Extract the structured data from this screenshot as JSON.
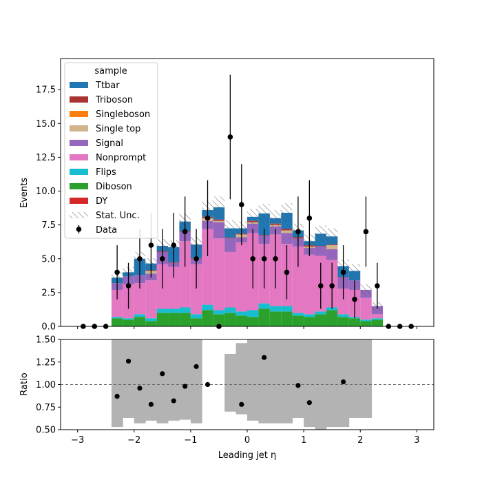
{
  "chart_data": [
    {
      "type": "bar",
      "subtype": "stacked-histogram",
      "ylabel": "Events",
      "ylim": [
        0,
        19.8
      ],
      "y_ticks": [
        "0.0",
        "2.5",
        "5.0",
        "7.5",
        "10.0",
        "12.5",
        "15.0",
        "17.5"
      ],
      "x_ticks": [
        "−3",
        "−2",
        "−1",
        "0",
        "1",
        "2",
        "3"
      ],
      "xlim": [
        -3.3,
        3.3
      ],
      "bin_edges": [
        -2.4,
        -2.2,
        -2.0,
        -1.8,
        -1.6,
        -1.4,
        -1.2,
        -1.0,
        -0.8,
        -0.6,
        -0.4,
        -0.2,
        0.0,
        0.2,
        0.4,
        0.6,
        0.8,
        1.0,
        1.2,
        1.4,
        1.6,
        1.8,
        2.0,
        2.2,
        2.4
      ],
      "legend_title": "sample",
      "legend_position": "top-left",
      "stack_order": [
        "DY",
        "Diboson",
        "Flips",
        "Nonprompt",
        "Signal",
        "Single top",
        "Singleboson",
        "Triboson",
        "Ttbar"
      ],
      "series": [
        {
          "name": "Ttbar",
          "color": "#1f77b4",
          "values": [
            0.4,
            0.3,
            1.2,
            0.5,
            0.4,
            1.1,
            0.7,
            1.0,
            0.5,
            0.9,
            0.7,
            0.4,
            0.3,
            1.6,
            0.4,
            1.2,
            0.5,
            0.3,
            0.9,
            0.6,
            0.8,
            0.7,
            0.0,
            0.0
          ]
        },
        {
          "name": "Triboson",
          "color": "#aa3333",
          "values": [
            0.0,
            0.0,
            0.0,
            0.05,
            0.05,
            0.05,
            0.05,
            0.05,
            0.1,
            0.1,
            0.05,
            0.05,
            0.1,
            0.05,
            0.1,
            0.1,
            0.1,
            0.1,
            0.05,
            0.05,
            0.05,
            0.0,
            0.0,
            0.0
          ]
        },
        {
          "name": "Singleboson",
          "color": "#ff7f0e",
          "values": [
            0.0,
            0.0,
            0.0,
            0.0,
            0.0,
            0.0,
            0.0,
            0.0,
            0.0,
            0.0,
            0.0,
            0.0,
            0.0,
            0.0,
            0.0,
            0.0,
            0.0,
            0.0,
            0.0,
            0.0,
            0.0,
            0.0,
            0.0,
            0.0
          ]
        },
        {
          "name": "Single top",
          "color": "#d2b48c",
          "values": [
            0.0,
            0.0,
            0.0,
            0.2,
            0.0,
            0.0,
            0.0,
            0.0,
            0.2,
            0.1,
            0.0,
            0.2,
            0.1,
            0.0,
            0.1,
            0.2,
            0.0,
            0.1,
            0.0,
            0.3,
            0.0,
            0.0,
            0.0,
            0.0
          ]
        },
        {
          "name": "Signal",
          "color": "#9467bd",
          "values": [
            0.5,
            0.6,
            0.6,
            0.5,
            0.9,
            0.3,
            0.7,
            0.4,
            0.6,
            1.2,
            1.0,
            0.4,
            0.7,
            0.6,
            0.6,
            0.8,
            0.6,
            0.5,
            0.7,
            0.8,
            0.8,
            0.7,
            0.6,
            0.6
          ]
        },
        {
          "name": "Nonprompt",
          "color": "#e377c2",
          "values": [
            2.0,
            2.5,
            2.3,
            2.8,
            3.3,
            3.1,
            4.9,
            3.7,
            5.6,
            5.3,
            4.1,
            5.1,
            5.7,
            4.4,
            5.3,
            4.6,
            4.9,
            4.4,
            4.1,
            3.5,
            1.9,
            2.0,
            1.6,
            0.3
          ]
        },
        {
          "name": "Flips",
          "color": "#17becf",
          "values": [
            0.1,
            0.1,
            0.2,
            0.2,
            0.3,
            0.3,
            0.4,
            0.3,
            0.4,
            0.3,
            0.4,
            0.3,
            0.5,
            0.4,
            0.4,
            0.4,
            0.2,
            0.2,
            0.2,
            0.2,
            0.2,
            0.1,
            0.1,
            0.1
          ]
        },
        {
          "name": "Diboson",
          "color": "#2ca02c",
          "values": [
            0.6,
            0.5,
            0.7,
            0.4,
            1.0,
            1.0,
            1.0,
            0.6,
            1.2,
            0.9,
            1.0,
            0.8,
            0.7,
            1.3,
            1.1,
            1.1,
            0.8,
            0.7,
            0.9,
            1.2,
            0.7,
            0.6,
            0.4,
            0.5
          ]
        },
        {
          "name": "DY",
          "color": "#d62728",
          "values": [
            0.0,
            0.0,
            0.0,
            0.0,
            0.0,
            0.0,
            0.0,
            0.0,
            0.0,
            0.0,
            0.0,
            0.0,
            0.0,
            0.0,
            0.0,
            0.0,
            0.0,
            0.0,
            0.0,
            0.0,
            0.0,
            0.0,
            0.0,
            0.0
          ]
        }
      ],
      "stat_unc_name": "Stat. Unc.",
      "stat_unc": [
        0.4,
        0.4,
        0.5,
        0.4,
        0.5,
        0.5,
        0.6,
        0.6,
        0.7,
        0.8,
        0.6,
        0.5,
        0.6,
        0.7,
        0.6,
        0.7,
        0.5,
        0.5,
        0.6,
        0.6,
        0.5,
        0.5,
        0.4,
        0.3
      ],
      "data_name": "Data",
      "data": {
        "x": [
          -2.9,
          -2.7,
          -2.5,
          -2.3,
          -2.1,
          -1.9,
          -1.7,
          -1.5,
          -1.3,
          -1.1,
          -0.9,
          -0.7,
          -0.5,
          -0.3,
          -0.1,
          0.1,
          0.3,
          0.5,
          0.7,
          0.9,
          1.1,
          1.3,
          1.5,
          1.7,
          1.9,
          2.1,
          2.3,
          2.5,
          2.7,
          2.9
        ],
        "y": [
          0,
          0,
          0,
          4,
          3,
          5,
          6,
          5,
          6,
          7,
          5,
          8,
          0,
          14,
          9,
          5,
          5,
          5,
          4,
          7,
          8,
          3,
          3,
          4,
          2,
          7,
          3,
          0,
          0,
          0
        ],
        "err": [
          0,
          0,
          0,
          2.0,
          1.7,
          2.2,
          2.4,
          2.2,
          2.4,
          2.6,
          2.2,
          2.8,
          0,
          4.6,
          3.0,
          2.2,
          2.2,
          2.2,
          2.0,
          2.6,
          2.8,
          1.7,
          1.7,
          2.0,
          1.4,
          2.6,
          1.7,
          0,
          0,
          0
        ]
      }
    },
    {
      "type": "scatter",
      "subtype": "ratio",
      "xlabel": "Leading jet  η",
      "ylabel": "Ratio",
      "ylim": [
        0.5,
        1.5
      ],
      "y_ticks": [
        "0.50",
        "0.75",
        "1.00",
        "1.25",
        "1.50"
      ],
      "x_ticks": [
        "−3",
        "−2",
        "−1",
        "0",
        "1",
        "2",
        "3"
      ],
      "xlim": [
        -3.3,
        3.3
      ],
      "reference_line": 1.0,
      "unc_band": {
        "bin_edges": [
          -2.4,
          -2.2,
          -2.0,
          -1.8,
          -1.6,
          -1.4,
          -1.2,
          -1.0,
          -0.8,
          -0.6,
          -0.4,
          -0.2,
          0.0,
          0.2,
          0.4,
          0.6,
          0.8,
          1.0,
          1.2,
          1.4,
          1.6,
          1.8,
          2.0,
          2.2,
          2.4
        ],
        "low": [
          0.53,
          0.63,
          0.57,
          0.6,
          0.57,
          0.6,
          0.61,
          0.57,
          null,
          null,
          0.7,
          0.67,
          0.6,
          0.57,
          0.57,
          0.57,
          0.63,
          0.53,
          0.5,
          0.53,
          0.53,
          0.63,
          0.63,
          null
        ],
        "high": [
          1.5,
          1.5,
          1.5,
          1.5,
          1.5,
          1.5,
          1.5,
          1.5,
          null,
          null,
          1.34,
          1.46,
          1.5,
          1.5,
          1.5,
          1.5,
          1.5,
          1.5,
          1.5,
          1.5,
          1.5,
          1.5,
          1.5,
          null
        ]
      },
      "points": {
        "x": [
          -2.3,
          -2.1,
          -1.9,
          -1.7,
          -1.5,
          -1.3,
          -1.1,
          -0.9,
          -0.7,
          -0.1,
          0.3,
          0.9,
          1.1,
          1.7
        ],
        "y": [
          0.87,
          1.26,
          0.96,
          0.78,
          1.12,
          0.82,
          0.98,
          1.2,
          1.0,
          0.78,
          1.3,
          0.99,
          0.8,
          1.03
        ]
      }
    }
  ]
}
